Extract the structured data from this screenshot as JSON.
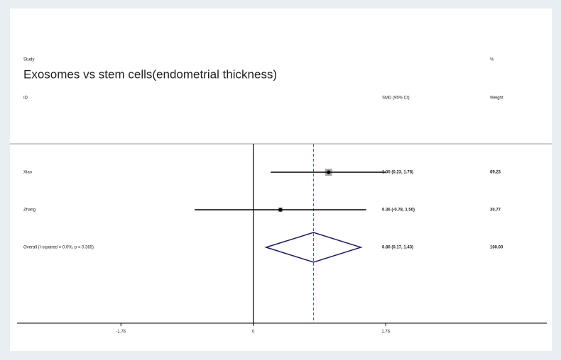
{
  "chart_data": {
    "type": "forest",
    "title": "Exosomes vs stem cells(endometrial thickness)",
    "headers": {
      "study": "Study",
      "id": "ID",
      "effect": "SMD (95% CI)",
      "percent": "%",
      "weight": "Weight"
    },
    "categories": [
      "Xiao",
      "Zhang"
    ],
    "values": [
      1.0,
      0.36
    ],
    "lower": [
      0.23,
      -0.78
    ],
    "upper": [
      1.76,
      1.5
    ],
    "value_labels": [
      "1.00 (0.23, 1.76)",
      "0.36 (-0.78, 1.50)"
    ],
    "weights": [
      69.23,
      30.77
    ],
    "overall": {
      "label": "Overall  (I-squared = 0.0%, p = 0.365)",
      "value": 0.8,
      "lower": 0.17,
      "upper": 1.43,
      "value_label": "0.80 (0.17, 1.43)",
      "weight": {
        "value": 100,
        "label": "100.00"
      }
    },
    "xlim": [
      -3.14,
      3.9
    ],
    "xticks": [
      -1.76,
      0,
      1.76
    ],
    "color": "#1a1a6e"
  }
}
